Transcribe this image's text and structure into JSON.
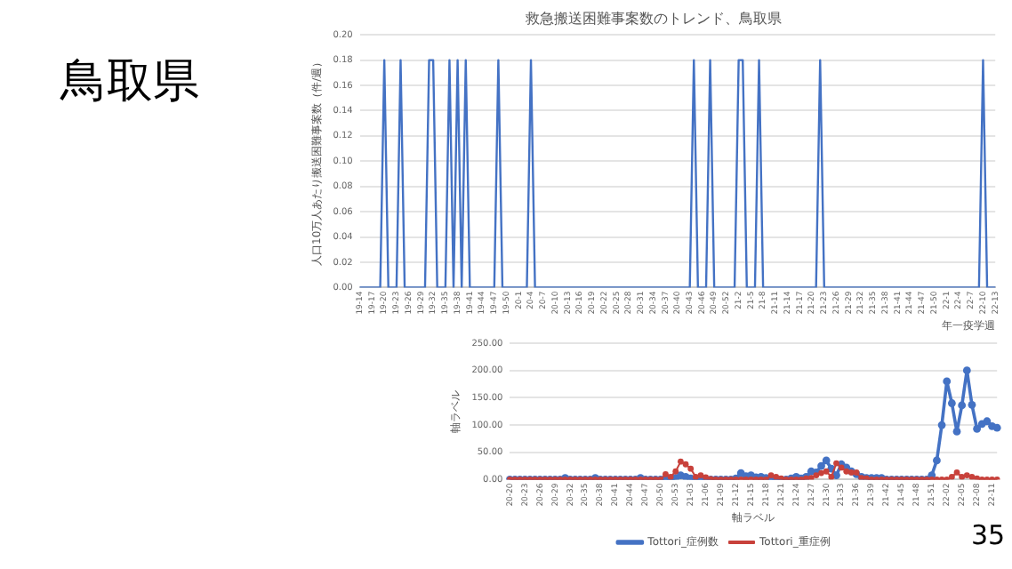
{
  "chart_data": [
    {
      "type": "line",
      "title": "救急搬送困難事案数のトレンド、鳥取県",
      "xlabel": "年一疫学週",
      "ylabel": "人口10万人あたり搬送困難事案数（件/週）",
      "annotations": [
        "鳥取県"
      ],
      "marker": "none",
      "grid": "y",
      "legend": false,
      "categories": [
        "19-14",
        null,
        null,
        "19-17",
        null,
        null,
        "19-20",
        null,
        null,
        "19-23",
        null,
        null,
        "19-26",
        null,
        null,
        "19-29",
        null,
        null,
        "19-32",
        null,
        null,
        "19-35",
        null,
        null,
        "19-38",
        null,
        null,
        "19-41",
        null,
        null,
        "19-44",
        null,
        null,
        "19-47",
        null,
        null,
        "19-50",
        null,
        null,
        "20-1",
        null,
        null,
        "20-4",
        null,
        null,
        "20-7",
        null,
        null,
        "20-10",
        null,
        null,
        "20-13",
        null,
        null,
        "20-16",
        null,
        null,
        "20-19",
        null,
        null,
        "20-22",
        null,
        null,
        "20-25",
        null,
        null,
        "20-28",
        null,
        null,
        "20-31",
        null,
        null,
        "20-34",
        null,
        null,
        "20-37",
        null,
        null,
        "20-40",
        null,
        null,
        "20-43",
        null,
        null,
        "20-46",
        null,
        null,
        "20-49",
        null,
        null,
        "20-52",
        null,
        null,
        "21-2",
        null,
        null,
        "21-5",
        null,
        null,
        "21-8",
        null,
        null,
        "21-11",
        null,
        null,
        "21-14",
        null,
        null,
        "21-17",
        null,
        null,
        "21-20",
        null,
        null,
        "21-23",
        null,
        null,
        "21-26",
        null,
        null,
        "21-29",
        null,
        null,
        "21-32",
        null,
        null,
        "21-35",
        null,
        null,
        "21-38",
        null,
        null,
        "21-41",
        null,
        null,
        "21-44",
        null,
        null,
        "21-47",
        null,
        null,
        "21-50",
        null,
        null,
        "22-1",
        null,
        null,
        "22-4",
        null,
        null,
        "22-7",
        null,
        null,
        "22-10",
        null,
        null,
        "22-13"
      ],
      "series": [
        {
          "color": "#4472c4",
          "values": [
            0,
            0,
            0,
            0,
            0,
            0,
            0.18,
            0,
            0,
            0,
            0.18,
            0,
            0,
            0,
            0,
            0,
            0,
            0.18,
            0.18,
            0,
            0,
            0,
            0.18,
            0,
            0.18,
            0,
            0.18,
            0,
            0,
            0,
            0,
            0,
            0,
            0,
            0.18,
            0,
            0,
            0,
            0,
            0,
            0,
            0,
            0.18,
            0,
            0,
            0,
            0,
            0,
            0,
            0,
            0,
            0,
            0,
            0,
            0,
            0,
            0,
            0,
            0,
            0,
            0,
            0,
            0,
            0,
            0,
            0,
            0,
            0,
            0,
            0,
            0,
            0,
            0,
            0,
            0,
            0,
            0,
            0,
            0,
            0,
            0,
            0,
            0.18,
            0,
            0,
            0,
            0.18,
            0,
            0,
            0,
            0,
            0,
            0,
            0.18,
            0.18,
            0,
            0,
            0,
            0.18,
            0,
            0,
            0,
            0,
            0,
            0,
            0,
            0,
            0,
            0,
            0,
            0,
            0,
            0,
            0.18,
            0,
            0,
            0,
            0,
            0,
            0,
            0,
            0,
            0,
            0,
            0,
            0,
            0,
            0,
            0,
            0,
            0,
            0,
            0,
            0,
            0,
            0,
            0,
            0,
            0,
            0,
            0,
            0,
            0,
            0,
            0,
            0,
            0,
            0,
            0,
            0,
            0,
            0,
            0,
            0.18,
            0,
            0,
            0
          ]
        }
      ],
      "ylim": [
        0,
        0.2
      ],
      "yticks": [
        {
          "value": 0,
          "label": "0.00"
        },
        {
          "value": 0.02,
          "label": "0.02"
        },
        {
          "value": 0.04,
          "label": "0.04"
        },
        {
          "value": 0.06,
          "label": "0.06"
        },
        {
          "value": 0.08,
          "label": "0.08"
        },
        {
          "value": 0.1,
          "label": "0.10"
        },
        {
          "value": 0.12,
          "label": "0.12"
        },
        {
          "value": 0.14,
          "label": "0.14"
        },
        {
          "value": 0.16,
          "label": "0.16"
        },
        {
          "value": 0.18,
          "label": "0.18"
        },
        {
          "value": 0.2,
          "label": "0.20"
        }
      ]
    },
    {
      "type": "line",
      "xlabel": "軸ラベル",
      "ylabel": "軸ラベル",
      "annotations": [
        "35"
      ],
      "marker": "circle",
      "grid": "y",
      "legend": "bottom",
      "categories": [
        "20-20",
        null,
        null,
        "20-23",
        null,
        null,
        "20-26",
        null,
        null,
        "20-29",
        null,
        null,
        "20-32",
        null,
        null,
        "20-35",
        null,
        null,
        "20-38",
        null,
        null,
        "20-41",
        null,
        null,
        "20-44",
        null,
        null,
        "20-47",
        null,
        null,
        "20-50",
        null,
        null,
        "20-53",
        null,
        null,
        "21-03",
        null,
        null,
        "21-06",
        null,
        null,
        "21-09",
        null,
        null,
        "21-12",
        null,
        null,
        "21-15",
        null,
        null,
        "21-18",
        null,
        null,
        "21-21",
        null,
        null,
        "21-24",
        null,
        null,
        "21-27",
        null,
        null,
        "21-30",
        null,
        null,
        "21-33",
        null,
        null,
        "21-36",
        null,
        null,
        "21-39",
        null,
        null,
        "21-42",
        null,
        null,
        "21-45",
        null,
        null,
        "21-48",
        null,
        null,
        "21-51",
        null,
        null,
        "22-02",
        null,
        null,
        "22-05",
        null,
        null,
        "22-08",
        null,
        null,
        "22-11",
        null
      ],
      "series": [
        {
          "name": "Tottori_症例数",
          "color": "#4472c4",
          "values": [
            0,
            0,
            0,
            0,
            0,
            0,
            0,
            0,
            0,
            0,
            0,
            3,
            0,
            0,
            0,
            0,
            0,
            3,
            0,
            0,
            0,
            0,
            0,
            0,
            0,
            0,
            3,
            0,
            0,
            0,
            0,
            2,
            0,
            3,
            8,
            5,
            2,
            0,
            0,
            0,
            0,
            0,
            0,
            0,
            0,
            2,
            12,
            6,
            8,
            4,
            5,
            3,
            2,
            0,
            0,
            0,
            2,
            5,
            2,
            5,
            15,
            13,
            25,
            35,
            20,
            8,
            28,
            22,
            15,
            10,
            5,
            3,
            3,
            3,
            3,
            0,
            0,
            0,
            0,
            0,
            0,
            0,
            0,
            0,
            8,
            35,
            100,
            180,
            140,
            88,
            136,
            200,
            137,
            93,
            102,
            107,
            98,
            95
          ]
        },
        {
          "name": "Tottori_重症例",
          "color": "#c8413b",
          "values": [
            0,
            0,
            0,
            0,
            0,
            0,
            0,
            0,
            0,
            0,
            0,
            0,
            0,
            0,
            0,
            0,
            0,
            0,
            0,
            0,
            0,
            0,
            0,
            0,
            0,
            0,
            0,
            0,
            0,
            0,
            0,
            10,
            5,
            15,
            33,
            28,
            20,
            5,
            8,
            4,
            1,
            0,
            0,
            0,
            0,
            0,
            0,
            0,
            0,
            0,
            0,
            0,
            8,
            5,
            2,
            0,
            0,
            0,
            0,
            2,
            3,
            8,
            12,
            15,
            5,
            30,
            22,
            15,
            13,
            13,
            3,
            2,
            0,
            0,
            0,
            0,
            0,
            0,
            0,
            0,
            0,
            0,
            0,
            0,
            0,
            0,
            0,
            0,
            5,
            13,
            5,
            8,
            5,
            2,
            0,
            0,
            0,
            0
          ]
        }
      ],
      "ylim": [
        0,
        250
      ],
      "yticks": [
        {
          "value": 0,
          "label": "0.00"
        },
        {
          "value": 50,
          "label": "50.00"
        },
        {
          "value": 100,
          "label": "100.00"
        },
        {
          "value": 150,
          "label": "150.00"
        },
        {
          "value": 200,
          "label": "200.00"
        },
        {
          "value": 250,
          "label": "250.00"
        }
      ]
    }
  ]
}
